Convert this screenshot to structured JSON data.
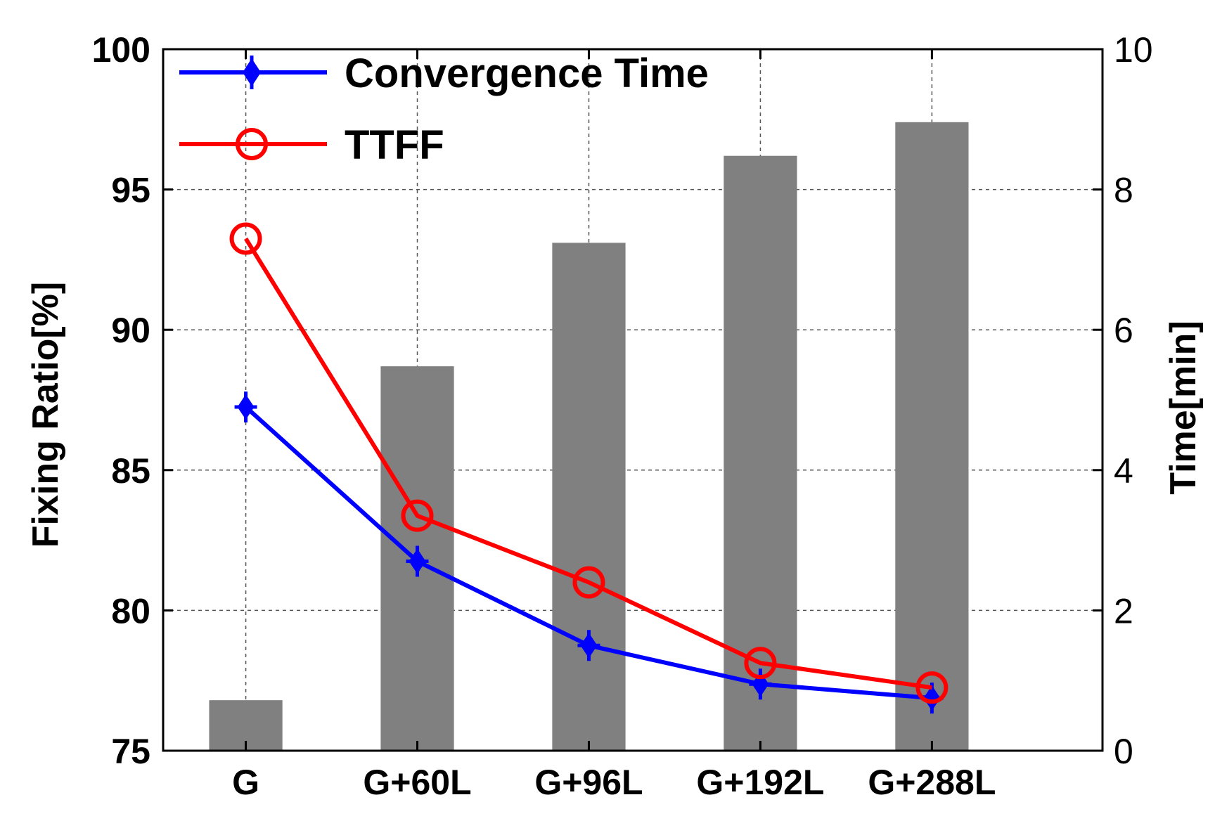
{
  "chart_data": {
    "type": "bar+line",
    "categories": [
      "G",
      "G+60L",
      "G+96L",
      "G+192L",
      "G+288L"
    ],
    "bars": {
      "name": "Fixing Ratio",
      "axis": "left",
      "color": "#808080",
      "values": [
        76.8,
        88.7,
        93.1,
        96.2,
        97.4
      ]
    },
    "series": [
      {
        "name": "Convergence Time",
        "axis": "right",
        "color": "#0000ff",
        "marker": "diamond-cross",
        "values": [
          4.9,
          2.7,
          1.5,
          0.95,
          0.75
        ]
      },
      {
        "name": "TTFF",
        "axis": "right",
        "color": "#ff0000",
        "marker": "circle",
        "values": [
          7.3,
          3.35,
          2.4,
          1.25,
          0.9
        ]
      }
    ],
    "left_axis": {
      "label": "Fixing Ratio[%]",
      "ylim": [
        75,
        100
      ],
      "ticks": [
        "75",
        "80",
        "85",
        "90",
        "95",
        "100"
      ]
    },
    "right_axis": {
      "label": "Time[min]",
      "ylim": [
        0,
        10
      ],
      "ticks": [
        "0",
        "2",
        "4",
        "6",
        "8",
        "10"
      ]
    },
    "grid": true,
    "legend": {
      "placement": "top-left",
      "entries": [
        "Convergence Time",
        "TTFF"
      ]
    }
  }
}
